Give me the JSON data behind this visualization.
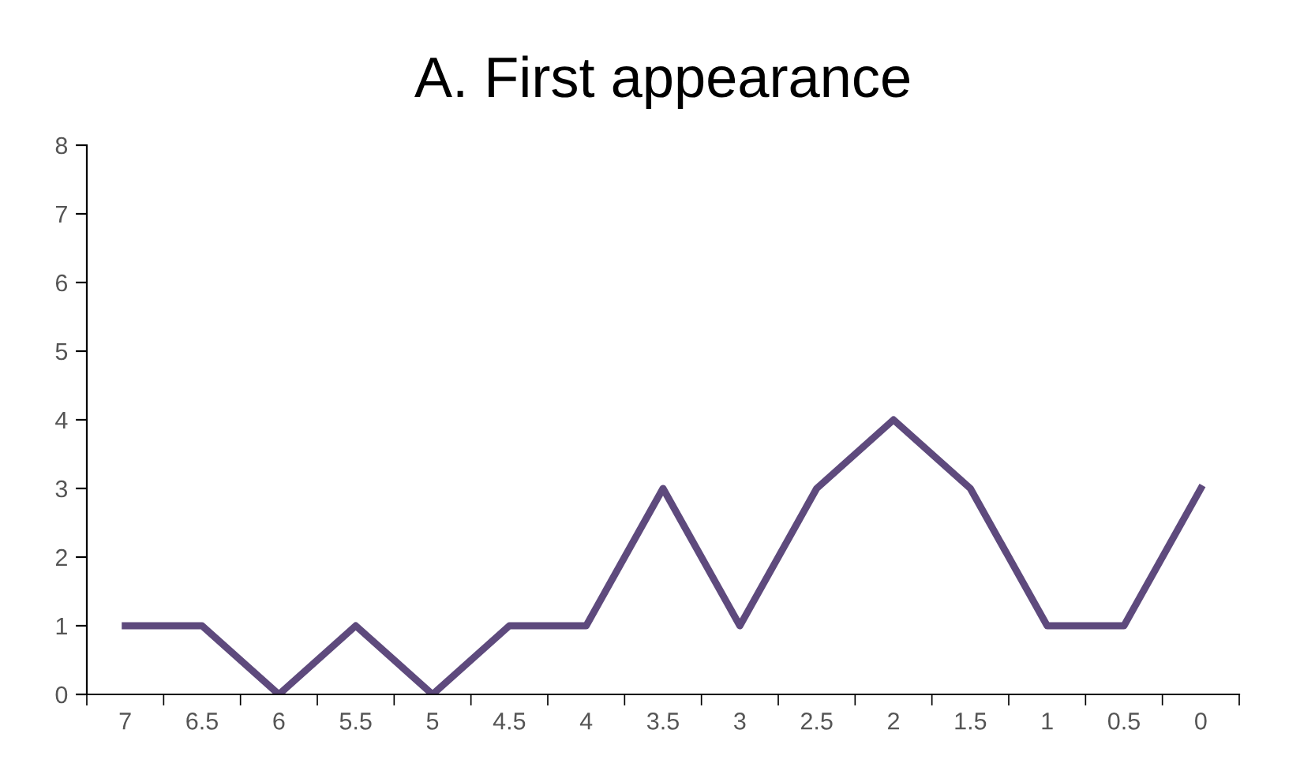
{
  "chart_data": {
    "type": "line",
    "title": "A. First appearance",
    "categories": [
      "7",
      "6.5",
      "6",
      "5.5",
      "5",
      "4.5",
      "4",
      "3.5",
      "3",
      "2.5",
      "2",
      "1.5",
      "1",
      "0.5",
      "0"
    ],
    "series": [
      {
        "color": "#5e4a7d",
        "values": [
          1,
          1,
          0,
          1,
          0,
          1,
          1,
          3,
          1,
          3,
          4,
          3,
          1,
          1,
          3
        ]
      }
    ],
    "ylim": [
      0,
      8
    ],
    "yticks": [
      0,
      1,
      2,
      3,
      4,
      5,
      6,
      7,
      8
    ],
    "grid": false,
    "marker": "none",
    "line_style": "solid"
  }
}
